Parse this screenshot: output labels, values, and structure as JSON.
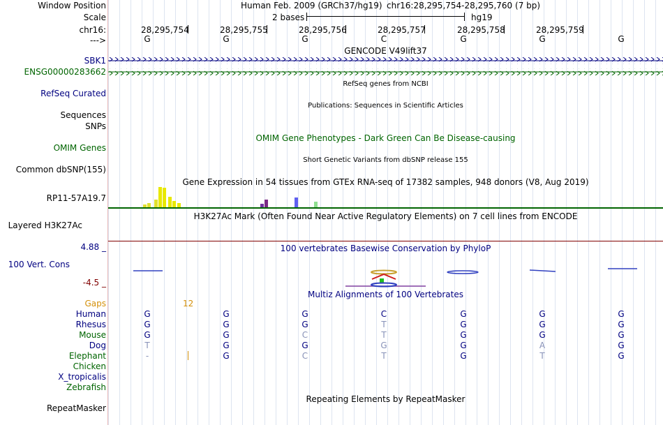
{
  "header": {
    "window_position_label": "Window Position",
    "scale_label": "Scale",
    "chrom_label": "chr16:",
    "strand_label": "--->",
    "assembly_text": "Human Feb. 2009 (GRCh37/hg19)",
    "position_text": "chr16:28,295,754-28,295,760 (7 bp)",
    "scale_text": "2 bases",
    "scale_db": "hg19",
    "coords": [
      "28,295,754",
      "28,295,755",
      "28,295,756",
      "28,295,757",
      "28,295,758",
      "28,295,759"
    ],
    "ref_bases": [
      "G",
      "G",
      "G",
      "C",
      "G",
      "G",
      "G"
    ]
  },
  "tracks": {
    "gencode_title": "GENCODE V49lift37",
    "gencode_items": [
      "SBK1",
      "ENSG00000283662"
    ],
    "refseq_label": "RefSeq Curated",
    "refseq_title": "RefSeq genes from NCBI",
    "sequences_label": "Sequences",
    "publications_title": "Publications: Sequences in Scientific Articles",
    "snps_label": "SNPs",
    "omim_title": "OMIM Gene Phenotypes - Dark Green Can Be Disease-causing",
    "omim_label": "OMIM Genes",
    "dbsnp_title": "Short Genetic Variants from dbSNP release 155",
    "dbsnp_label": "Common dbSNP(155)",
    "gtex_title": "Gene Expression in 54 tissues from GTEx RNA-seq of 17382 samples, 948 donors (V8, Aug 2019)",
    "gtex_label": "RP11-57A19.7",
    "h3k27ac_title": "H3K27Ac Mark (Often Found Near Active Regulatory Elements) on 7 cell lines from ENCODE",
    "h3k27ac_label": "Layered H3K27Ac",
    "cons_max": "4.88 _",
    "cons_label": "100 Vert. Cons",
    "cons_min": "-4.5 _",
    "cons_title": "100 vertebrates Basewise Conservation by PhyloP",
    "multiz_title": "Multiz Alignments of 100 Vertebrates",
    "gaps_label": "Gaps",
    "gaps_value": "12",
    "repeat_title": "Repeating Elements by RepeatMasker",
    "repeat_label": "RepeatMasker"
  },
  "alignment": [
    {
      "species": "Human",
      "bases": [
        "G",
        "G",
        "G",
        "C",
        "G",
        "G",
        "G"
      ],
      "color": "#000080"
    },
    {
      "species": "Rhesus",
      "bases": [
        "G",
        "G",
        "G",
        "T",
        "G",
        "G",
        "G"
      ],
      "color": "#000080"
    },
    {
      "species": "Mouse",
      "bases": [
        "G",
        "G",
        "C",
        "T",
        "G",
        "G",
        "G"
      ],
      "color": "#006400"
    },
    {
      "species": "Dog",
      "bases": [
        "T",
        "G",
        "G",
        "G",
        "G",
        "A",
        "G"
      ],
      "color": "#000080"
    },
    {
      "species": "Elephant",
      "bases": [
        "-",
        "G",
        "C",
        "T",
        "G",
        "T",
        "G"
      ],
      "color": "#006400"
    },
    {
      "species": "Chicken",
      "bases": [],
      "color": "#006400"
    },
    {
      "species": "X_tropicalis",
      "bases": [],
      "color": "#000080"
    },
    {
      "species": "Zebrafish",
      "bases": [],
      "color": "#006400"
    }
  ],
  "colors": {
    "navy": "#000080",
    "green": "#006400",
    "gaps": "#d4900a",
    "gtex_line": "#006400",
    "h3k27ac_line": "#800000"
  }
}
